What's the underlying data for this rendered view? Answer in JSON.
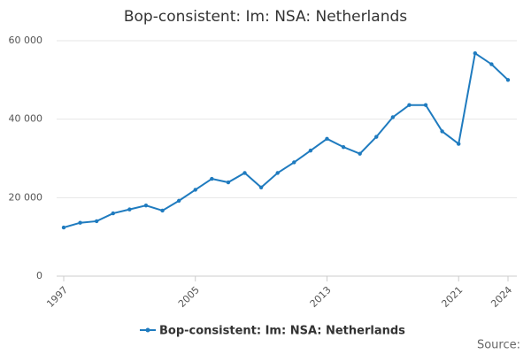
{
  "chart_data": {
    "type": "line",
    "title": "Bop-consistent: Im: NSA: Netherlands",
    "x": [
      1997,
      1998,
      1999,
      2000,
      2001,
      2002,
      2003,
      2004,
      2005,
      2006,
      2007,
      2008,
      2009,
      2010,
      2011,
      2012,
      2013,
      2014,
      2015,
      2016,
      2017,
      2018,
      2019,
      2020,
      2021,
      2022,
      2023,
      2024
    ],
    "series": [
      {
        "name": "Bop-consistent: Im: NSA: Netherlands",
        "color": "#1f7bbf",
        "values": [
          12400,
          13600,
          14000,
          16000,
          17000,
          18000,
          16700,
          19200,
          22000,
          24800,
          23900,
          26300,
          22600,
          26300,
          29000,
          32000,
          35000,
          32900,
          31200,
          35500,
          40500,
          43600,
          43600,
          36900,
          33700,
          56800,
          54000,
          50000
        ]
      }
    ],
    "xlim": [
      1997,
      2024
    ],
    "xticks": [
      1997,
      2005,
      2013,
      2021,
      2024
    ],
    "ylim": [
      0,
      60000
    ],
    "yticks": [
      0,
      {
        "value": 20000,
        "label": "20 000"
      },
      {
        "value": 40000,
        "label": "40 000"
      },
      {
        "value": 60000,
        "label": "60 000"
      }
    ],
    "grid": true,
    "legend": "bottom",
    "source": "Source:"
  }
}
